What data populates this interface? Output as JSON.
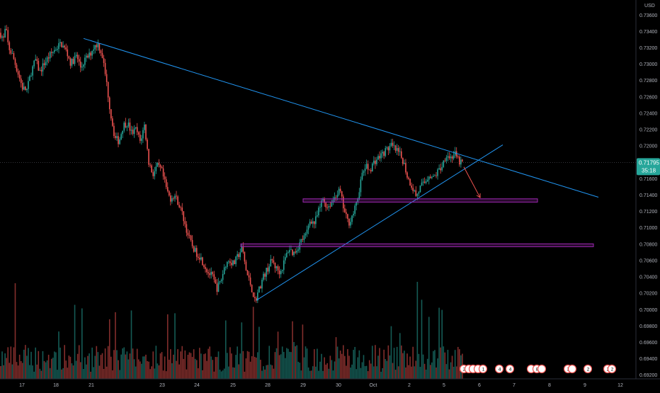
{
  "price_scale": {
    "currency": "USD",
    "ticks": [
      "0.73600",
      "0.73400",
      "0.73200",
      "0.73000",
      "0.72800",
      "0.72600",
      "0.72400",
      "0.72200",
      "0.72000",
      "0.71800",
      "0.71600",
      "0.71400",
      "0.71200",
      "0.71000",
      "0.70800",
      "0.70600",
      "0.70400",
      "0.70200",
      "0.70000",
      "0.69800",
      "0.69600",
      "0.69400",
      "0.69200"
    ]
  },
  "current_price": {
    "value": "0.71795",
    "countdown": "35:18",
    "color": "#26a69a"
  },
  "time_axis": {
    "labels": [
      "17",
      "18",
      "21",
      "23",
      "24",
      "25",
      "28",
      "29",
      "30",
      "Oct",
      "2",
      "5",
      "6",
      "7",
      "8",
      "9",
      "12"
    ]
  },
  "chart_data": {
    "type": "candlestick",
    "instrument_hint": "USD",
    "ylim": [
      0.6915,
      0.7378
    ],
    "price_path": [
      [
        0,
        0.7338
      ],
      [
        5,
        0.733
      ],
      [
        8,
        0.7345
      ],
      [
        12,
        0.732
      ],
      [
        18,
        0.731
      ],
      [
        25,
        0.729
      ],
      [
        32,
        0.727
      ],
      [
        38,
        0.7268
      ],
      [
        44,
        0.729
      ],
      [
        50,
        0.7305
      ],
      [
        56,
        0.729
      ],
      [
        62,
        0.73
      ],
      [
        70,
        0.731
      ],
      [
        78,
        0.7318
      ],
      [
        86,
        0.7325
      ],
      [
        94,
        0.7315
      ],
      [
        100,
        0.73
      ],
      [
        108,
        0.731
      ],
      [
        114,
        0.7295
      ],
      [
        120,
        0.7305
      ],
      [
        126,
        0.731
      ],
      [
        132,
        0.732
      ],
      [
        138,
        0.7325
      ],
      [
        144,
        0.7312
      ],
      [
        150,
        0.728
      ],
      [
        156,
        0.724
      ],
      [
        162,
        0.721
      ],
      [
        168,
        0.7205
      ],
      [
        174,
        0.7225
      ],
      [
        180,
        0.7228
      ],
      [
        186,
        0.7215
      ],
      [
        192,
        0.722
      ],
      [
        198,
        0.7205
      ],
      [
        204,
        0.7225
      ],
      [
        210,
        0.718
      ],
      [
        216,
        0.7165
      ],
      [
        222,
        0.7175
      ],
      [
        228,
        0.717
      ],
      [
        234,
        0.715
      ],
      [
        240,
        0.7135
      ],
      [
        246,
        0.714
      ],
      [
        252,
        0.713
      ],
      [
        258,
        0.7115
      ],
      [
        264,
        0.7095
      ],
      [
        270,
        0.708
      ],
      [
        276,
        0.707
      ],
      [
        282,
        0.7065
      ],
      [
        288,
        0.7055
      ],
      [
        294,
        0.7045
      ],
      [
        300,
        0.704
      ],
      [
        306,
        0.7025
      ],
      [
        312,
        0.7035
      ],
      [
        318,
        0.7055
      ],
      [
        324,
        0.706
      ],
      [
        330,
        0.7055
      ],
      [
        336,
        0.7065
      ],
      [
        342,
        0.7075
      ],
      [
        348,
        0.7045
      ],
      [
        354,
        0.703
      ],
      [
        360,
        0.701
      ],
      [
        366,
        0.7025
      ],
      [
        372,
        0.704
      ],
      [
        378,
        0.705
      ],
      [
        384,
        0.706
      ],
      [
        390,
        0.705
      ],
      [
        396,
        0.7045
      ],
      [
        402,
        0.706
      ],
      [
        408,
        0.7075
      ],
      [
        414,
        0.7068
      ],
      [
        420,
        0.7075
      ],
      [
        426,
        0.7085
      ],
      [
        432,
        0.709
      ],
      [
        438,
        0.711
      ],
      [
        444,
        0.7105
      ],
      [
        450,
        0.712
      ],
      [
        456,
        0.7135
      ],
      [
        462,
        0.7125
      ],
      [
        468,
        0.713
      ],
      [
        474,
        0.714
      ],
      [
        480,
        0.7145
      ],
      [
        486,
        0.712
      ],
      [
        492,
        0.7105
      ],
      [
        498,
        0.7115
      ],
      [
        504,
        0.713
      ],
      [
        510,
        0.716
      ],
      [
        516,
        0.7175
      ],
      [
        522,
        0.717
      ],
      [
        528,
        0.718
      ],
      [
        534,
        0.7185
      ],
      [
        540,
        0.719
      ],
      [
        546,
        0.7195
      ],
      [
        552,
        0.72
      ],
      [
        558,
        0.7195
      ],
      [
        564,
        0.719
      ],
      [
        570,
        0.718
      ],
      [
        576,
        0.716
      ],
      [
        582,
        0.715
      ],
      [
        588,
        0.7138
      ],
      [
        594,
        0.715
      ],
      [
        600,
        0.7155
      ],
      [
        606,
        0.7165
      ],
      [
        612,
        0.716
      ],
      [
        618,
        0.7168
      ],
      [
        624,
        0.7175
      ],
      [
        630,
        0.719
      ],
      [
        636,
        0.7185
      ],
      [
        642,
        0.719
      ],
      [
        648,
        0.718
      ],
      [
        654,
        0.71795
      ]
    ],
    "annotations": [
      {
        "kind": "trendline",
        "color": "#2196f3",
        "from": [
          118,
          0.7331
        ],
        "to": [
          845,
          0.7137
        ]
      },
      {
        "kind": "trendline",
        "color": "#2196f3",
        "from": [
          362,
          0.7011
        ],
        "to": [
          710,
          0.7201
        ]
      },
      {
        "kind": "zone",
        "color": "#9c27b0",
        "x": [
          428,
          759
        ],
        "y": [
          0.7135,
          0.7131
        ]
      },
      {
        "kind": "zone",
        "color": "#9c27b0",
        "x": [
          340,
          838
        ],
        "y": [
          0.708,
          0.70765
        ]
      },
      {
        "kind": "arrow",
        "color": "#ef5350",
        "from": [
          655,
          0.7174
        ],
        "to": [
          678,
          0.71365
        ]
      }
    ],
    "event_markers": [
      {
        "x": 655,
        "label": "2"
      },
      {
        "x": 662,
        "label": ""
      },
      {
        "x": 668,
        "label": ""
      },
      {
        "x": 675,
        "label": ""
      },
      {
        "x": 682,
        "label": "1"
      },
      {
        "x": 705,
        "label": "4"
      },
      {
        "x": 720,
        "label": "4"
      },
      {
        "x": 750,
        "label": ""
      },
      {
        "x": 758,
        "label": "8"
      },
      {
        "x": 765,
        "label": ""
      },
      {
        "x": 802,
        "label": "3"
      },
      {
        "x": 808,
        "label": ""
      },
      {
        "x": 830,
        "label": "2"
      },
      {
        "x": 858,
        "label": "2"
      },
      {
        "x": 864,
        "label": "2"
      }
    ]
  }
}
